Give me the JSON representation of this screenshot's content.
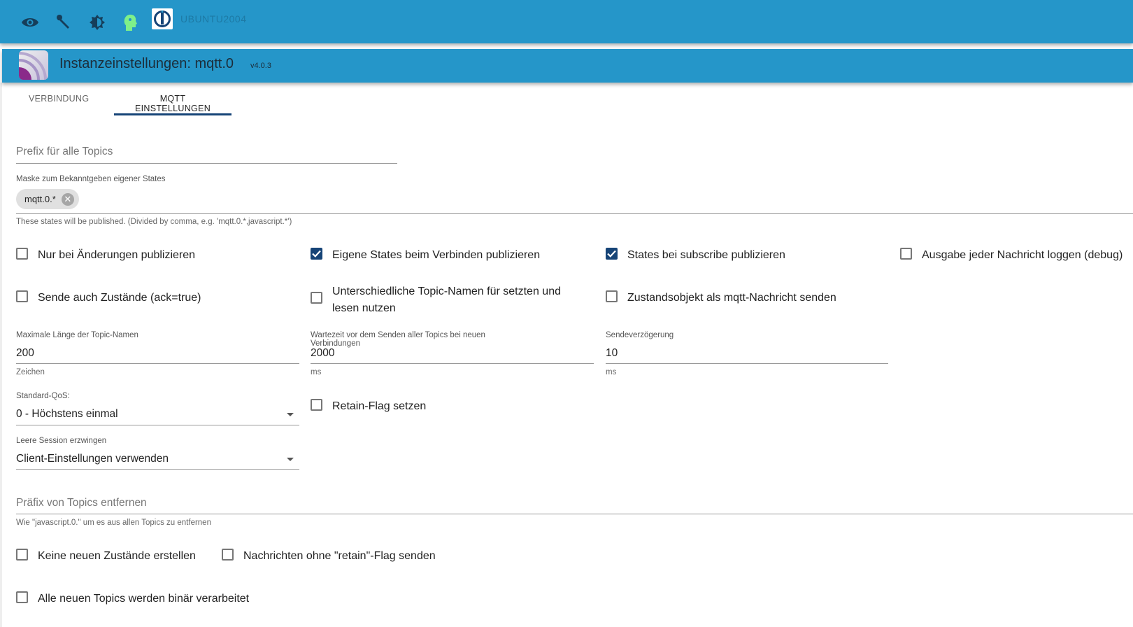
{
  "topbar": {
    "icons": [
      "eye-icon",
      "wrench-icon",
      "brightness-icon",
      "expert-mode-head-icon",
      "iobroker-logo-icon"
    ],
    "hostname": "UBUNTU2004"
  },
  "header": {
    "title": "Instanzeinstellungen: mqtt.0",
    "version": "v4.0.3",
    "logo": "mqtt-adapter-logo"
  },
  "tabs": [
    {
      "label": "VERBINDUNG",
      "active": false
    },
    {
      "label": "MQTT EINSTELLUNGEN",
      "active": true
    }
  ],
  "form": {
    "prefix": {
      "label": "Prefix für alle Topics",
      "value": ""
    },
    "mask": {
      "label": "Maske zum Bekanntgeben eigener States",
      "chip": "mqtt.0.*",
      "helper": "These states will be published. (Divided by comma, e.g. 'mqtt.0.*,javascript.*')"
    },
    "checks1": [
      {
        "label": "Nur bei Änderungen publizieren",
        "checked": false
      },
      {
        "label": "Eigene States beim Verbinden publizieren",
        "checked": true
      },
      {
        "label": "States bei subscribe publizieren",
        "checked": true
      },
      {
        "label": "Ausgabe jeder Nachricht loggen (debug)",
        "checked": false
      }
    ],
    "checks2": [
      {
        "label": "Sende auch Zustände (ack=true)",
        "checked": false
      },
      {
        "label": "Unterschiedliche Topic-Namen für setzten und lesen nutzen",
        "checked": false
      },
      {
        "label": "Zustandsobjekt als mqtt-Nachricht senden",
        "checked": false
      }
    ],
    "maxlen": {
      "label": "Maximale Länge der Topic-Namen",
      "value": "200",
      "helper": "Zeichen"
    },
    "wait": {
      "label": "Wartezeit vor dem Senden aller Topics bei neuen Verbindungen",
      "value": "2000",
      "helper": "ms"
    },
    "delay": {
      "label": "Sendeverzögerung",
      "value": "10",
      "helper": "ms"
    },
    "qos": {
      "label": "Standard-QoS:",
      "value": "0 - Höchstens einmal"
    },
    "retain": {
      "label": "Retain-Flag setzen",
      "checked": false
    },
    "session": {
      "label": "Leere Session erzwingen",
      "value": "Client-Einstellungen verwenden"
    },
    "removePrefix": {
      "label": "Präfix von Topics entfernen",
      "value": "",
      "helper": "Wie \"javascript.0.\" um es aus allen Topics zu entfernen"
    },
    "checks3": [
      {
        "label": "Keine neuen Zustände erstellen",
        "checked": false
      },
      {
        "label": "Nachrichten ohne \"retain\"-Flag senden",
        "checked": false
      },
      {
        "label": "Alle neuen Topics werden binär verarbeitet",
        "checked": false
      }
    ]
  },
  "colors": {
    "bar": "#2596c9",
    "accent": "#164477"
  }
}
